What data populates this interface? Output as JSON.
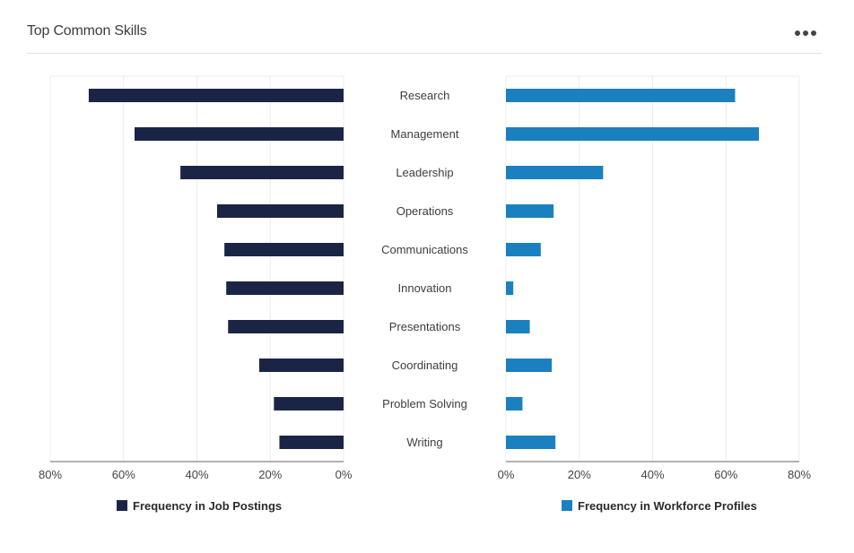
{
  "header": {
    "title": "Top Common Skills",
    "more_icon": "ellipsis-icon"
  },
  "chart_data": {
    "type": "bar",
    "orientation": "horizontal-butterfly",
    "categories": [
      "Research",
      "Management",
      "Leadership",
      "Operations",
      "Communications",
      "Innovation",
      "Presentations",
      "Coordinating",
      "Problem Solving",
      "Writing"
    ],
    "series": [
      {
        "name": "Frequency in Job Postings",
        "color": "#1a2546",
        "side": "left",
        "values": [
          69.5,
          57,
          44.5,
          34.5,
          32.5,
          32,
          31.5,
          23,
          19,
          17.5
        ]
      },
      {
        "name": "Frequency in Workforce Profiles",
        "color": "#1b80c0",
        "side": "right",
        "values": [
          62.5,
          69,
          26.5,
          13,
          9.5,
          2,
          6.5,
          12.5,
          4.5,
          13.5
        ]
      }
    ],
    "left_axis": {
      "ticks": [
        "80%",
        "60%",
        "40%",
        "20%",
        "0%"
      ],
      "range": [
        0,
        80
      ],
      "reversed": true
    },
    "right_axis": {
      "ticks": [
        "0%",
        "20%",
        "40%",
        "60%",
        "80%"
      ],
      "range": [
        0,
        80
      ]
    },
    "grid": true,
    "legend": "bottom"
  }
}
